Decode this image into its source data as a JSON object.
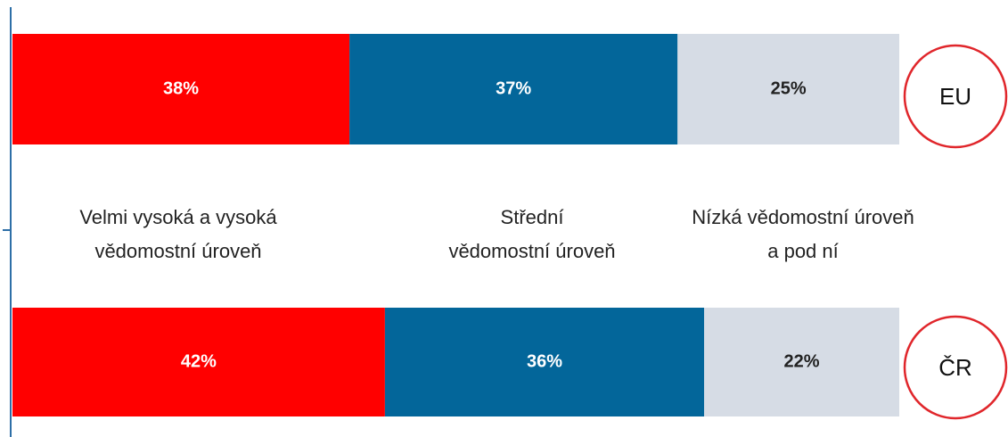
{
  "chart_data": {
    "type": "stacked-bar-horizontal",
    "categories": [
      "EU",
      "ČR"
    ],
    "xlim": [
      0,
      100
    ],
    "series": [
      {
        "name": "Velmi vysoká a vysoká vědomostní úroveň",
        "color": "#ff0000",
        "values": [
          38,
          42
        ],
        "value_labels": [
          "38%",
          "42%"
        ]
      },
      {
        "name": "Střední vědomostní úroveň",
        "color": "#03669a",
        "values": [
          37,
          36
        ],
        "value_labels": [
          "37%",
          "36%"
        ]
      },
      {
        "name": "Nízká vědomostní úroveň a pod ní",
        "color": "#d6dce5",
        "values": [
          25,
          22
        ],
        "value_labels": [
          "25%",
          "22%"
        ]
      }
    ]
  }
}
